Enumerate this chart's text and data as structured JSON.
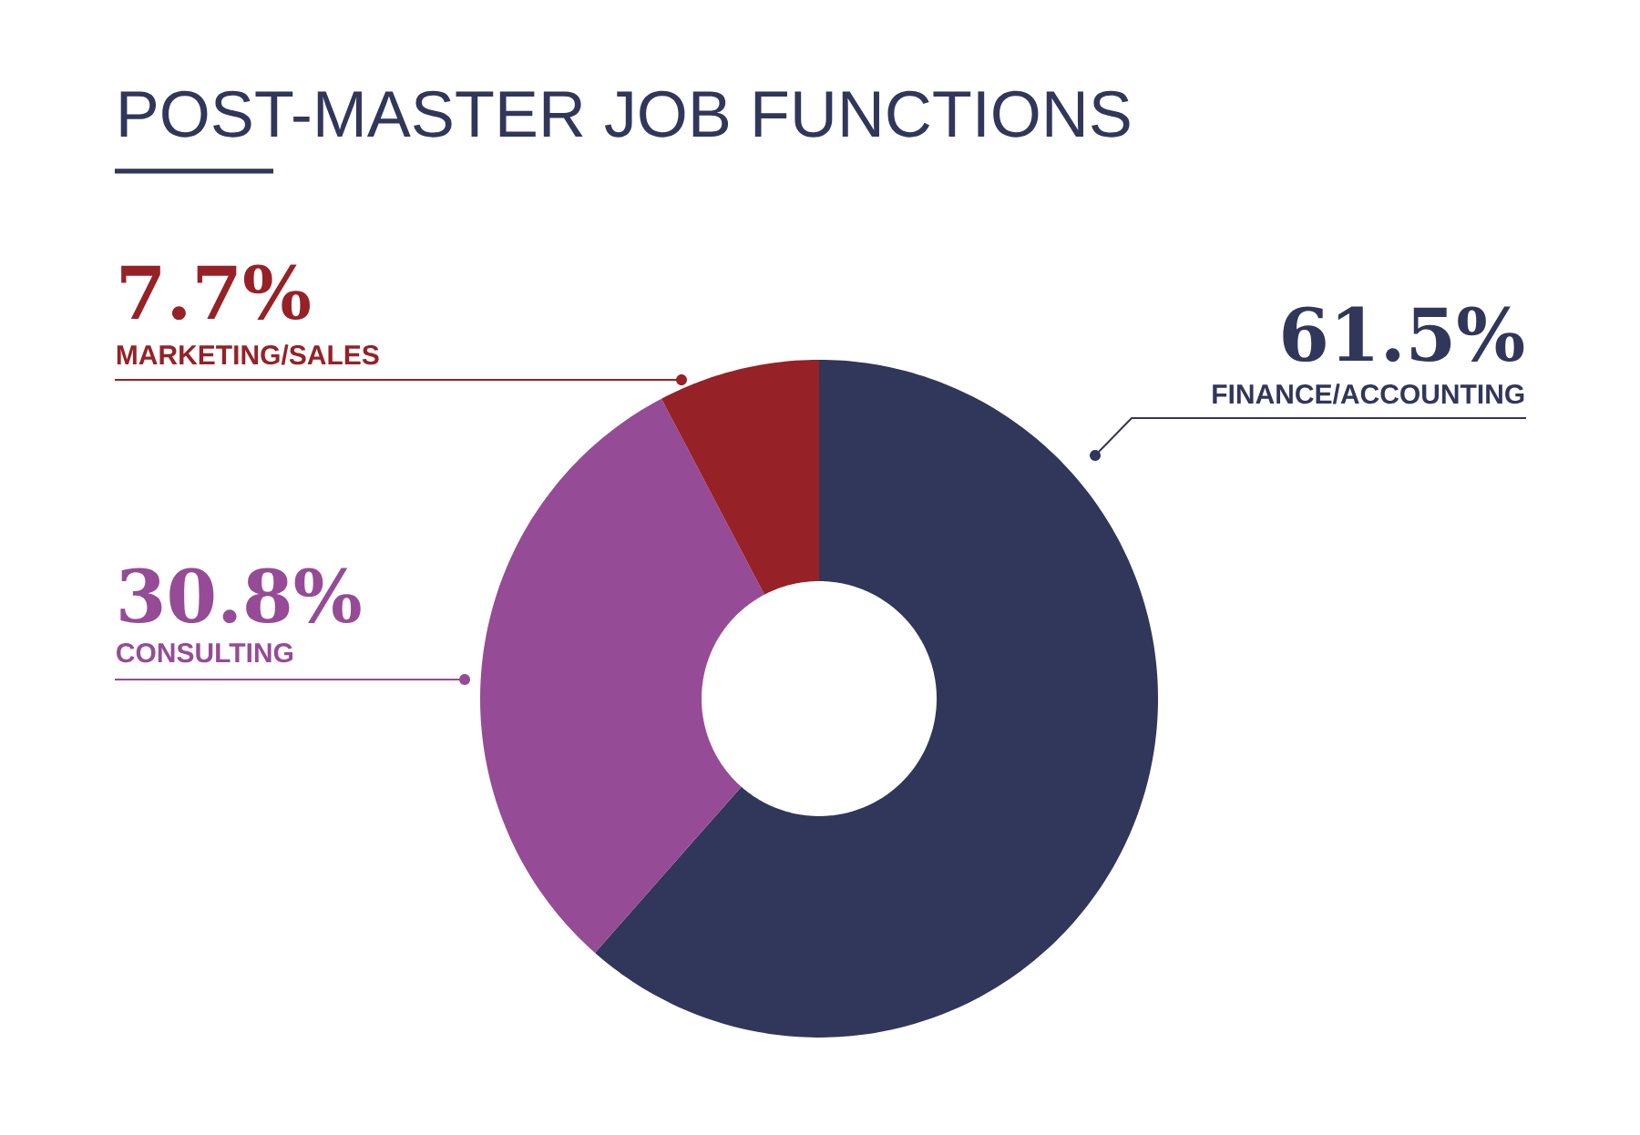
{
  "chart_data": {
    "type": "donut",
    "title": "POST-MASTER JOB FUNCTIONS",
    "categories": [
      "FINANCE/ACCOUNTING",
      "CONSULTING",
      "MARKETING/SALES"
    ],
    "values": [
      61.5,
      30.8,
      7.7
    ],
    "colors": [
      "#31365b",
      "#964b96",
      "#962126"
    ],
    "value_labels": [
      "61.5%",
      "30.8%",
      "7.7%"
    ]
  }
}
